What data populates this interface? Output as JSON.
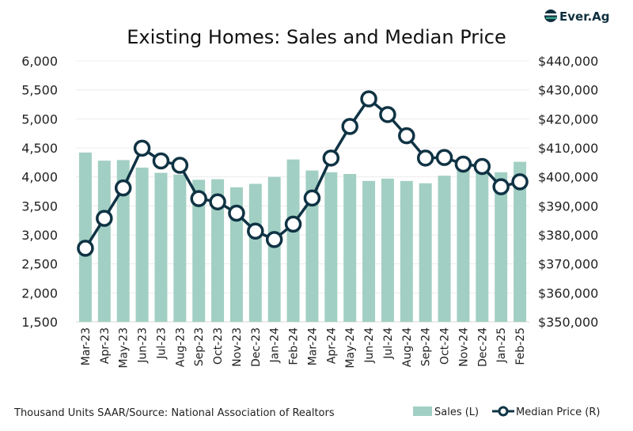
{
  "logo": {
    "text": "Ever.Ag",
    "colors": {
      "teal": "#3aa58a",
      "navy": "#0f2f3f"
    }
  },
  "chart_data": {
    "type": "bar+line",
    "title": "Existing Homes: Sales and Median Price",
    "footnote": "Thousand Units SAAR/Source: National Association of Realtors",
    "categories": [
      "Mar-23",
      "Apr-23",
      "May-23",
      "Jun-23",
      "Jul-23",
      "Aug-23",
      "Sep-23",
      "Oct-23",
      "Nov-23",
      "Dec-23",
      "Jan-24",
      "Feb-24",
      "Mar-24",
      "Apr-24",
      "May-24",
      "Jun-24",
      "Jul-24",
      "Aug-24",
      "Sep-24",
      "Oct-24",
      "Nov-24",
      "Dec-24",
      "Jan-25",
      "Feb-25"
    ],
    "series": [
      {
        "name": "Sales (L)",
        "type": "bar",
        "axis": "left",
        "color": "#a2cfc3",
        "values": [
          4420,
          4280,
          4290,
          4160,
          4070,
          4040,
          3950,
          3960,
          3820,
          3880,
          4000,
          4300,
          4110,
          4080,
          4050,
          3930,
          3970,
          3930,
          3890,
          4020,
          4150,
          4250,
          4080,
          4260
        ]
      },
      {
        "name": "Median Price (R)",
        "type": "line",
        "axis": "right",
        "color": "#0f3344",
        "values": [
          375400,
          385700,
          396200,
          409900,
          405500,
          404000,
          392500,
          391400,
          387500,
          381300,
          378400,
          383700,
          392700,
          406500,
          417400,
          426900,
          421500,
          414200,
          406500,
          406700,
          404400,
          403600,
          396600,
          398300
        ]
      }
    ],
    "left_axis": {
      "range": [
        1500,
        6000
      ],
      "ticks": [
        "1,500",
        "2,000",
        "2,500",
        "3,000",
        "3,500",
        "4,000",
        "4,500",
        "5,000",
        "5,500",
        "6,000"
      ]
    },
    "right_axis": {
      "range": [
        350000,
        440000
      ],
      "ticks": [
        "$350,000",
        "$360,000",
        "$370,000",
        "$380,000",
        "$390,000",
        "$400,000",
        "$410,000",
        "$420,000",
        "$430,000",
        "$440,000"
      ]
    },
    "grid": true,
    "legend_position": "bottom-right"
  }
}
